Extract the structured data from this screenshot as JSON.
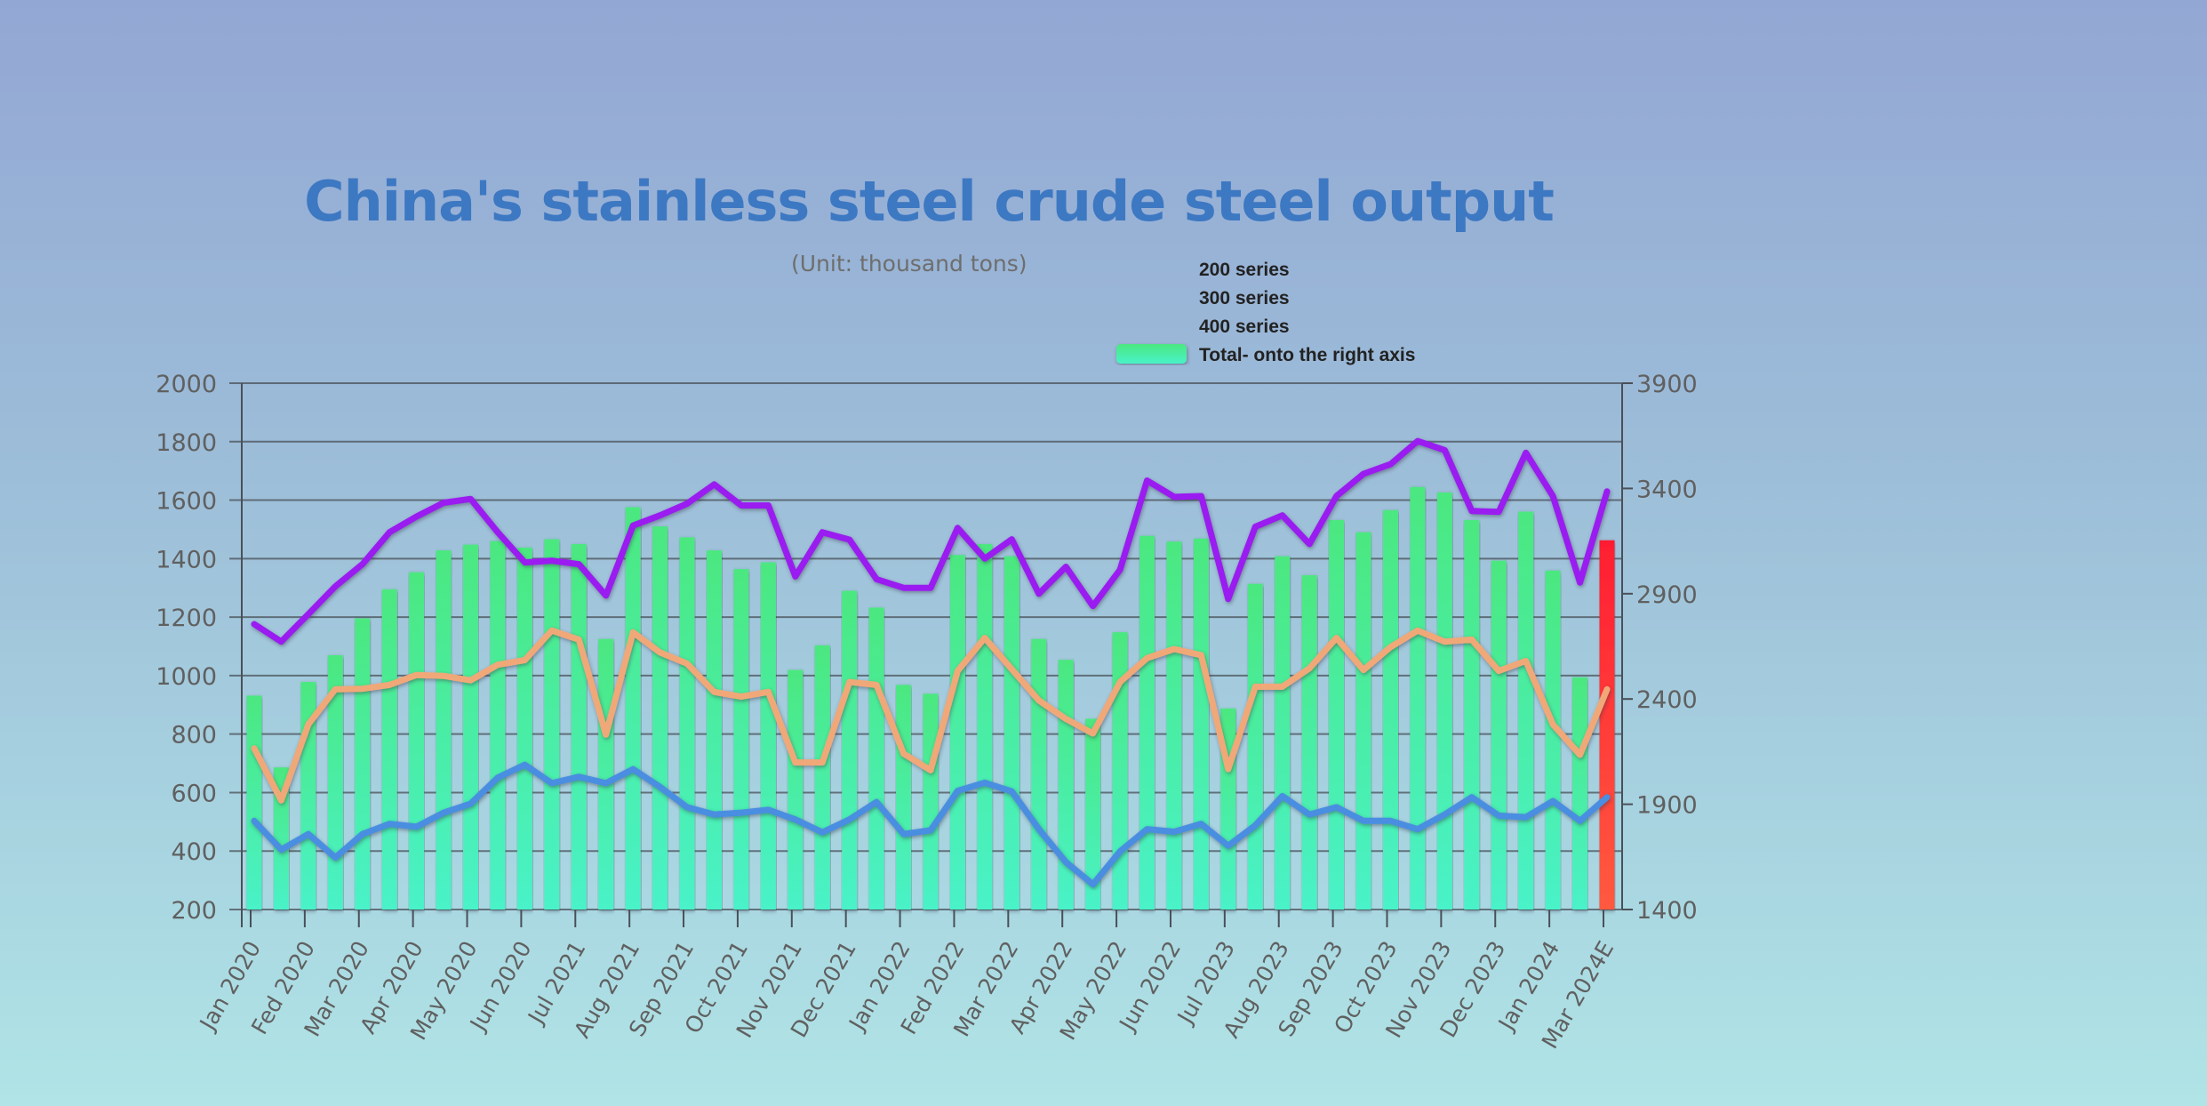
{
  "chart_data": {
    "type": "bar+line",
    "title": "China's stainless steel crude steel output",
    "subtitle": "(Unit: thousand tons)",
    "x": [
      "Jan 2020",
      "",
      "Fed 2020",
      "",
      "Mar 2020",
      "",
      "Apr 2020",
      "",
      "May 2020",
      "",
      "Jun 2020",
      "",
      "Jul 2021",
      "",
      "Aug 2021",
      "",
      "Sep 2021",
      "",
      "Oct 2021",
      "",
      "Nov 2021",
      "",
      "Dec 2021",
      "",
      "Jan 2022",
      "",
      "Fed 2022",
      "",
      "Mar 2022",
      "",
      "Apr 2022",
      "",
      "May 2022",
      "",
      "Jun 2022",
      "",
      "Jul 2023",
      "",
      "Aug 2023",
      "",
      "Sep 2023",
      "",
      "Oct 2023",
      "",
      "Nov 2023",
      "",
      "Dec 2023",
      "",
      "Jan 2024",
      "",
      "Mar 2024E"
    ],
    "x_tick_labels": [
      "Jan 2020",
      "Fed 2020",
      "Mar 2020",
      "Apr 2020",
      "May 2020",
      "Jun 2020",
      "Jul 2021",
      "Aug 2021",
      "Sep 2021",
      "Oct 2021",
      "Nov 2021",
      "Dec 2021",
      "Jan 2022",
      "Fed 2022",
      "Mar 2022",
      "Apr 2022",
      "May 2022",
      "Jun 2022",
      "Jul 2023",
      "Aug 2023",
      "Sep 2023",
      "Oct 2023",
      "Nov 2023",
      "Dec 2023",
      "Jan 2024",
      "Mar 2024E"
    ],
    "left_axis": {
      "ylim": [
        200,
        2000
      ],
      "ticks": [
        200,
        400,
        600,
        800,
        1000,
        1200,
        1400,
        1600,
        1800,
        2000
      ]
    },
    "right_axis": {
      "ylim": [
        1400,
        3900
      ],
      "ticks": [
        1400,
        1900,
        2400,
        2900,
        3400,
        3900
      ]
    },
    "grid": true,
    "legend_placement": "top-right",
    "series": [
      {
        "name": "200 series",
        "type": "line",
        "axis": "left",
        "color": "#f0a878",
        "values": [
          751,
          573,
          833,
          953,
          955,
          968,
          1002,
          999,
          984,
          1037,
          1053,
          1154,
          1123,
          798,
          1148,
          1079,
          1041,
          944,
          928,
          944,
          703,
          703,
          978,
          968,
          733,
          676,
          1016,
          1129,
          1022,
          915,
          852,
          802,
          978,
          1060,
          1091,
          1070,
          680,
          962,
          962,
          1025,
          1129,
          1019,
          1098,
          1154,
          1116,
          1123,
          1016,
          1050,
          833,
          729,
          953
        ]
      },
      {
        "name": "300 series",
        "type": "line",
        "axis": "left",
        "color": "#9a1af0",
        "values": [
          1176,
          1116,
          1210,
          1305,
          1381,
          1490,
          1544,
          1591,
          1604,
          1490,
          1387,
          1393,
          1381,
          1274,
          1513,
          1548,
          1588,
          1654,
          1582,
          1582,
          1339,
          1490,
          1465,
          1330,
          1300,
          1300,
          1505,
          1400,
          1466,
          1280,
          1372,
          1238,
          1362,
          1667,
          1611,
          1614,
          1262,
          1509,
          1548,
          1450,
          1614,
          1690,
          1723,
          1802,
          1771,
          1563,
          1560,
          1762,
          1614,
          1318,
          1630
        ]
      },
      {
        "name": "400 series",
        "type": "line",
        "axis": "left",
        "color": "#4a8ee0",
        "values": [
          503,
          405,
          458,
          378,
          458,
          493,
          483,
          531,
          562,
          651,
          695,
          632,
          654,
          632,
          680,
          619,
          550,
          525,
          531,
          541,
          508,
          464,
          508,
          568,
          458,
          471,
          606,
          634,
          604,
          475,
          362,
          286,
          399,
          475,
          466,
          493,
          418,
          488,
          588,
          525,
          550,
          503,
          503,
          475,
          525,
          584,
          521,
          516,
          571,
          503,
          584
        ]
      },
      {
        "name": "Total- onto the right axis",
        "type": "bar",
        "axis": "right",
        "color": "#48eeb0",
        "highlight_color": "#ff2a35",
        "highlight_last": true,
        "values": [
          2416,
          2075,
          2481,
          2608,
          2783,
          2921,
          3002,
          3106,
          3133,
          3150,
          3119,
          3159,
          3136,
          2685,
          3311,
          3220,
          3168,
          3106,
          3017,
          3049,
          2538,
          2655,
          2914,
          2834,
          2467,
          2425,
          3084,
          3136,
          3078,
          2685,
          2586,
          2306,
          2717,
          3175,
          3148,
          3162,
          2355,
          2947,
          3078,
          2988,
          3250,
          3192,
          3297,
          3407,
          3381,
          3250,
          3057,
          3290,
          3010,
          2503,
          3154
        ]
      }
    ]
  }
}
